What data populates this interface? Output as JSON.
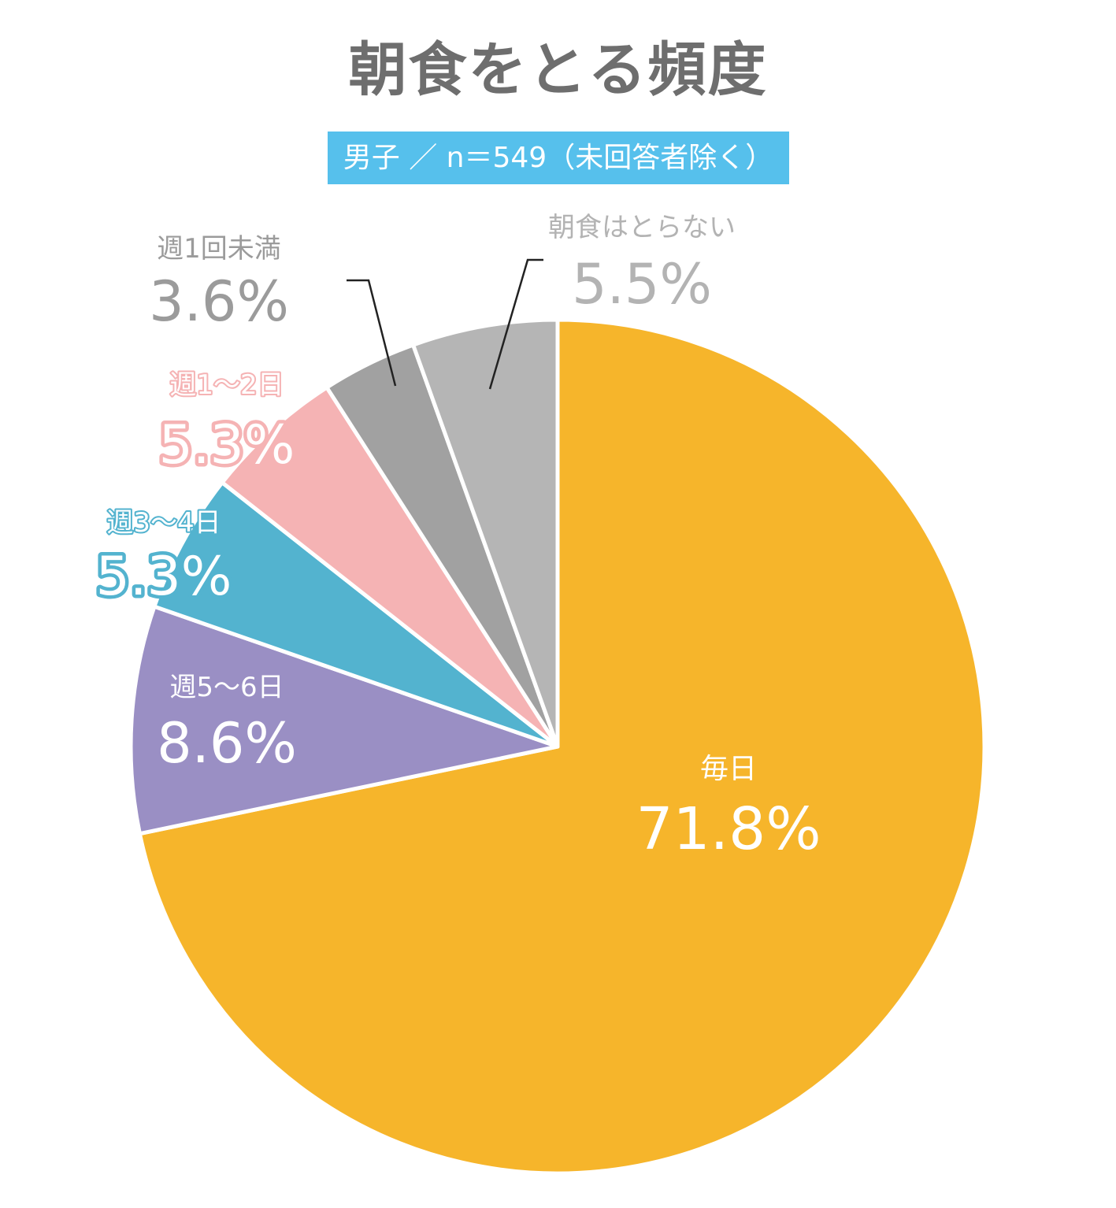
{
  "chart_data": {
    "type": "pie",
    "title": "朝食をとる頻度",
    "subtitle": "男子 ／ n＝549（未回答者除く）",
    "slices": [
      {
        "label": "毎日",
        "value": 71.8,
        "display": "71.8%",
        "color": "#f6b52b"
      },
      {
        "label": "週5〜6日",
        "value": 8.6,
        "display": "8.6%",
        "color": "#9a8fc4"
      },
      {
        "label": "週3〜4日",
        "value": 5.3,
        "display": "5.3%",
        "color": "#53b3cf"
      },
      {
        "label": "週1〜2日",
        "value": 5.3,
        "display": "5.3%",
        "color": "#f5b3b4"
      },
      {
        "label": "週1回未満",
        "value": 3.6,
        "display": "3.6%",
        "color": "#a1a1a1"
      },
      {
        "label": "朝食はとらない",
        "value": 5.5,
        "display": "5.5%",
        "color": "#b5b5b5"
      }
    ]
  },
  "colors": {
    "title": "#6e6e6e",
    "subtitle_bg": "#56c0ec",
    "label_gray": "#9b9b9b",
    "label_light_gray": "#b3b3b3",
    "label_pink": "#f5b3b4",
    "label_blue": "#53b3cf"
  }
}
